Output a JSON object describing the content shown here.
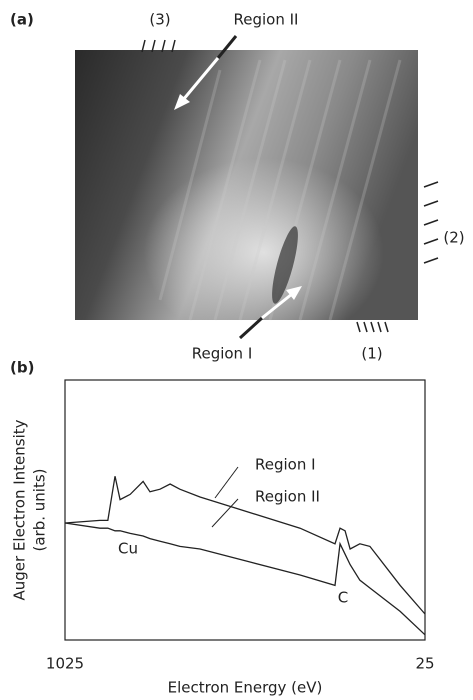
{
  "panel_a": {
    "label": "(a)",
    "annotations": [
      "Region II",
      "Region I",
      "(3)",
      "(2)",
      "(1)"
    ]
  },
  "chart_data": {
    "type": "line",
    "panel_label": "(b)",
    "x_label": "Electron Energy (eV)",
    "y_label": [
      "Auger Electron Intensity",
      "(arb. units)"
    ],
    "x": [
      1025,
      928,
      906,
      886,
      872,
      844,
      808,
      789,
      761,
      733,
      706,
      650,
      511,
      372,
      275,
      261,
      247,
      233,
      206,
      178,
      94,
      25
    ],
    "series": [
      {
        "name": "Region I",
        "color": "#222222",
        "values": [
          45,
          46,
          46,
          63,
          54,
          56,
          61,
          57,
          58,
          60,
          58,
          55,
          49,
          43,
          37,
          43,
          42,
          35,
          37,
          36,
          21,
          10
        ]
      },
      {
        "name": "Region II",
        "color": "#222222",
        "values": [
          45,
          43,
          43,
          42,
          42,
          41,
          40,
          39,
          38,
          37,
          36,
          35,
          30,
          25,
          21,
          37,
          33,
          29,
          23,
          20,
          11,
          2
        ]
      }
    ],
    "annotations": [
      "Cu",
      "C"
    ],
    "xlim": [
      1025,
      25
    ],
    "xticks": [
      1025,
      25
    ],
    "ylim": [
      0,
      100
    ],
    "grid": false
  }
}
